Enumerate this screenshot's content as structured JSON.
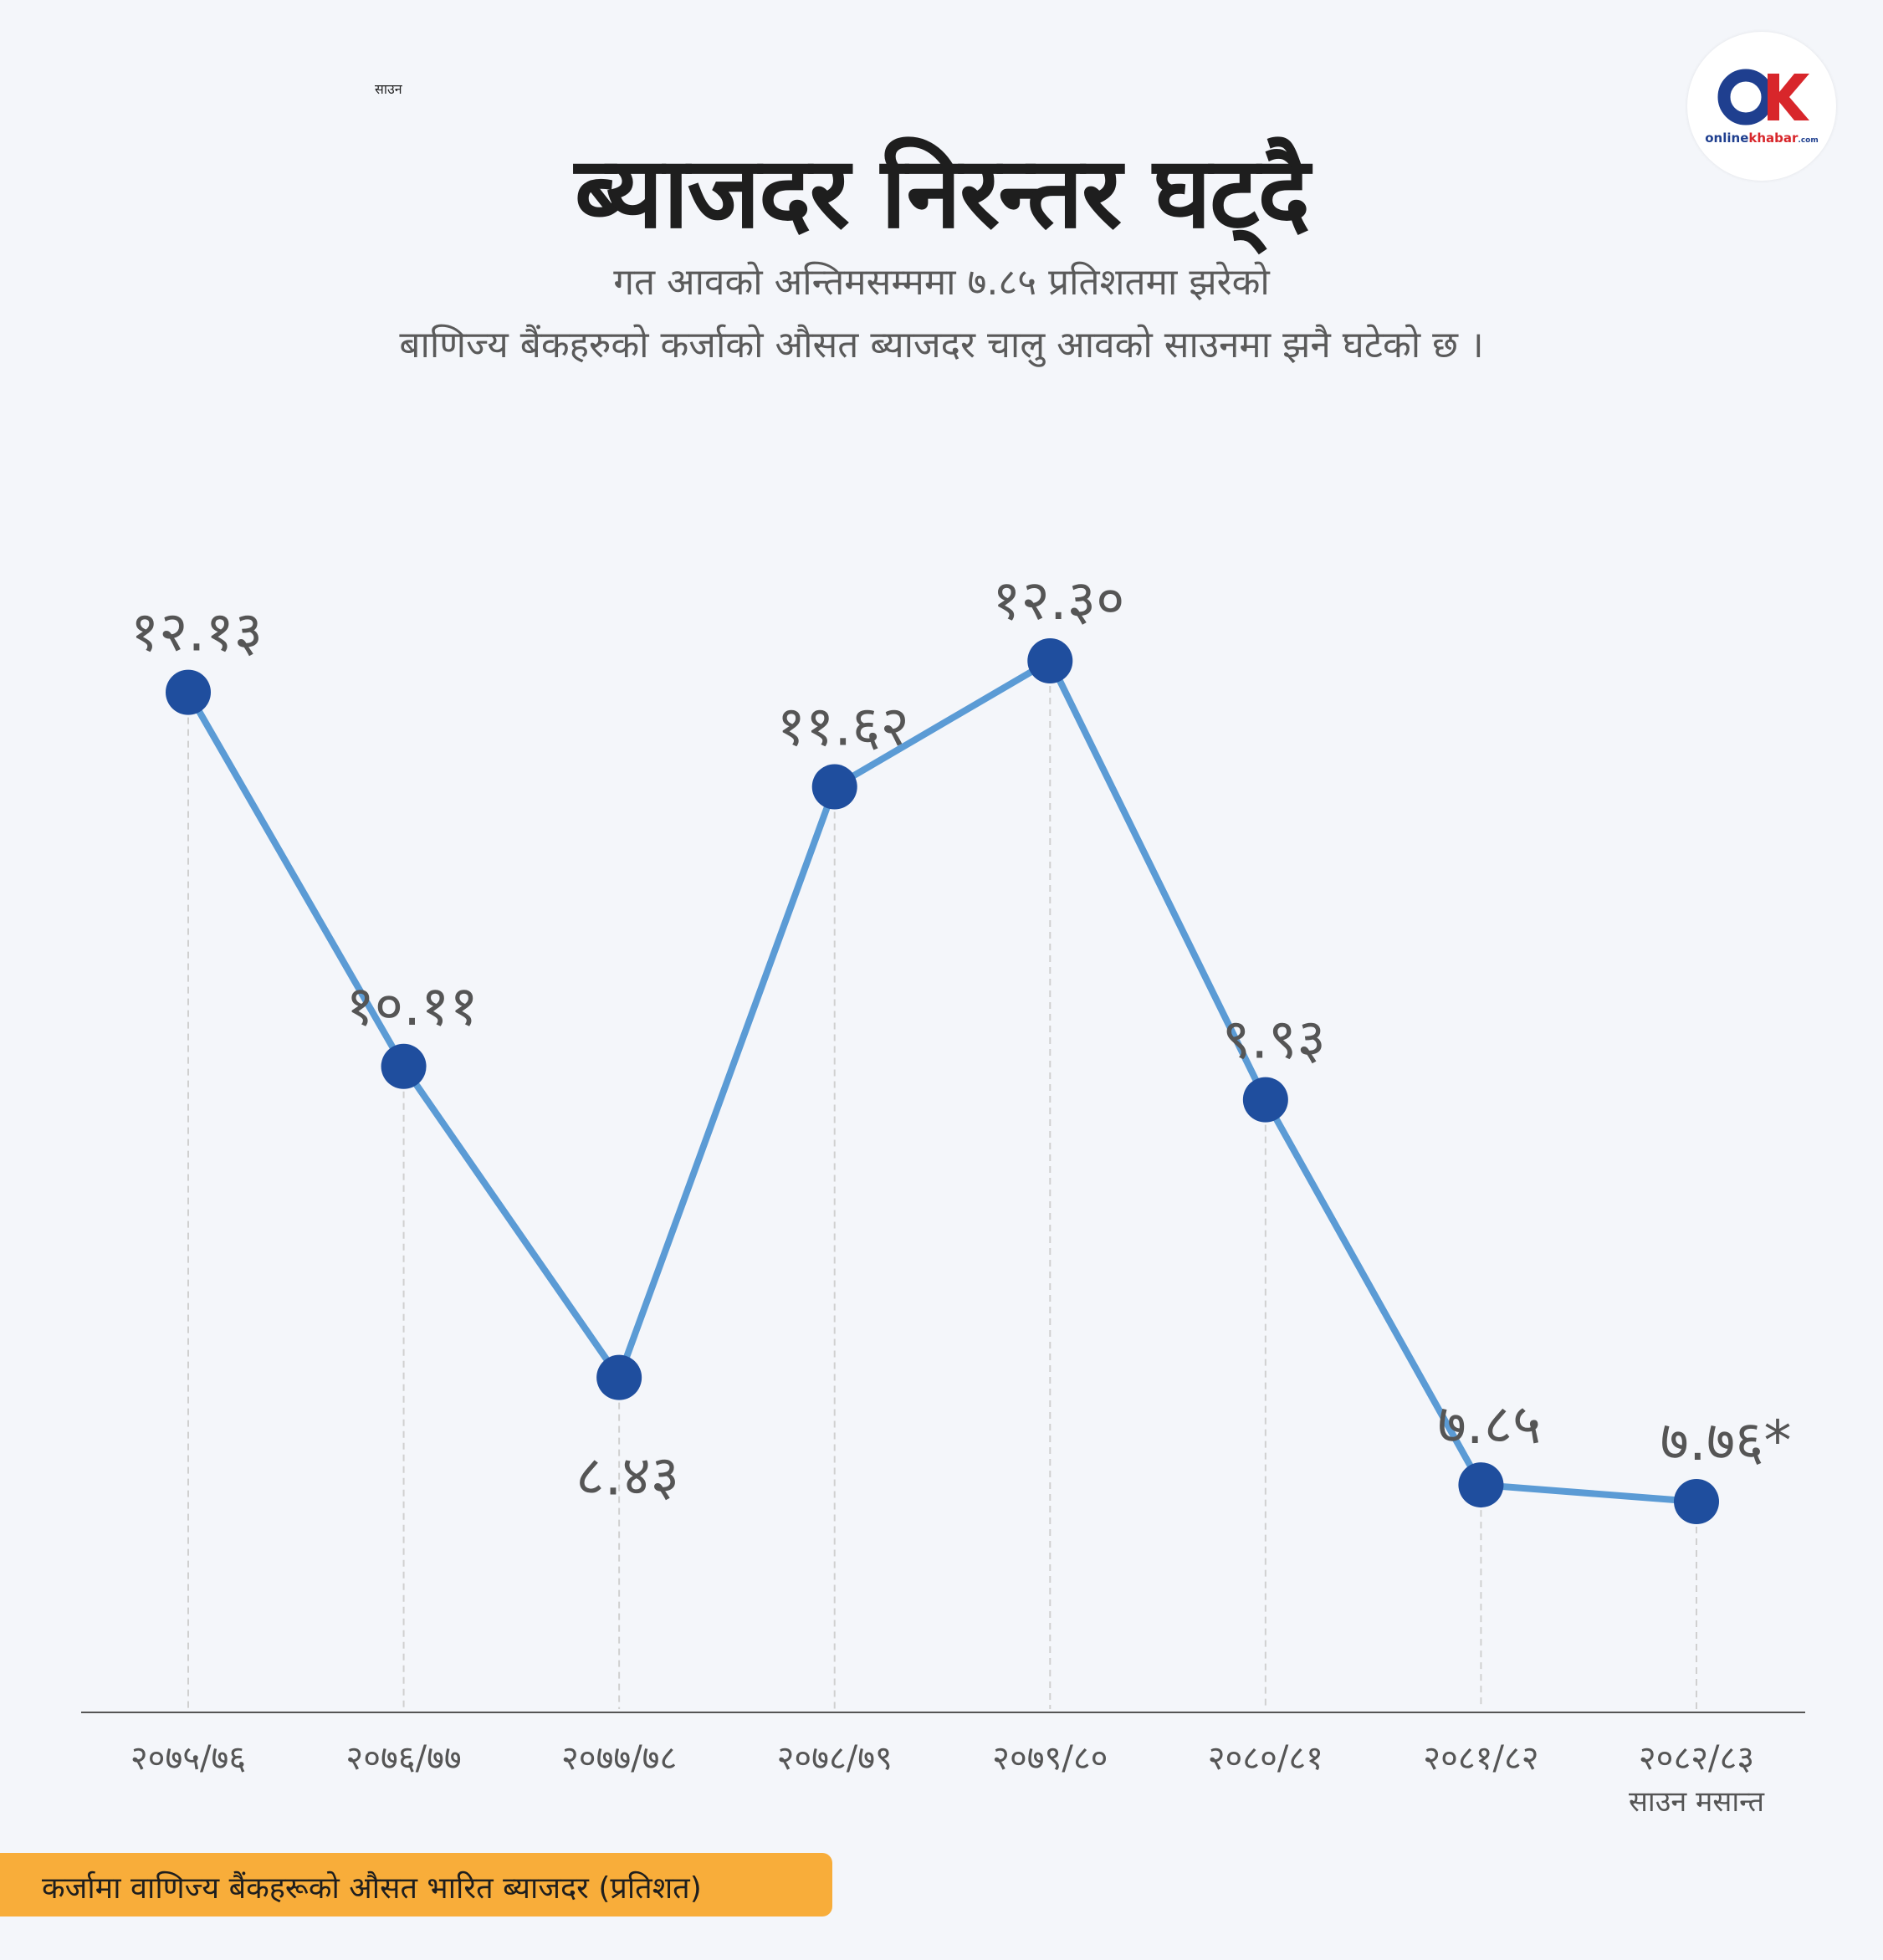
{
  "header": {
    "small_label": "साउन",
    "title": "ब्याजदर निरन्तर घट्दै",
    "subtitle_line1": "गत आवको अन्तिमसम्ममा ७.८५ प्रतिशतमा झरेको",
    "subtitle_line2": "बाणिज्य बैंकहरुको कर्जाको औसत ब्याजदर चालु आवको साउनमा झनै घटेको छ ।"
  },
  "logo": {
    "text_part1": "online",
    "text_part2": "khabar",
    "text_part3": ".com",
    "colors": {
      "blue": "#1f3f8f",
      "red": "#d8262b"
    }
  },
  "chart_data": {
    "type": "line",
    "categories": [
      "२०७५/७६",
      "२०७६/७७",
      "२०७७/७८",
      "२०७८/७९",
      "२०७९/८०",
      "२०८०/८१",
      "२०८१/८२",
      "२०८२/८३"
    ],
    "category_sublabels": [
      "",
      "",
      "",
      "",
      "",
      "",
      "",
      "साउन मसान्त"
    ],
    "values": [
      12.13,
      10.11,
      8.43,
      11.62,
      12.3,
      9.93,
      7.85,
      7.76
    ],
    "data_labels": [
      "१२.१३",
      "१०.११",
      "८.४३",
      "११.६२",
      "१२.३०",
      "९.९३",
      "७.८५",
      "७.७६*"
    ],
    "label_position": [
      "above",
      "above",
      "below",
      "above",
      "above",
      "above",
      "above",
      "above"
    ],
    "ylim": [
      5.5,
      13.5
    ],
    "grid": false,
    "legend_text": "कर्जामा वाणिज्य बैंकहरूको औसत भारित ब्याजदर  (प्रतिशत)",
    "colors": {
      "line": "#5b9bd5",
      "marker": "#1f4e9e",
      "label": "#555555",
      "axis": "#555555",
      "dropline": "#d0d0d0"
    }
  }
}
